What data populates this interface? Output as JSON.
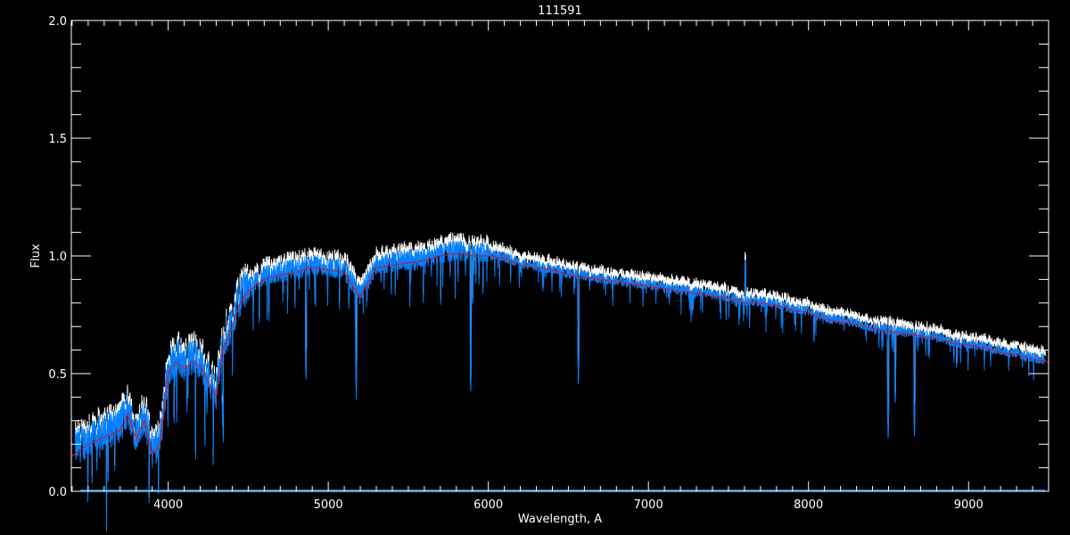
{
  "chart_data": {
    "type": "line",
    "title": "111591",
    "xlabel": "Wavelength, A",
    "ylabel": "Flux",
    "xlim": [
      3395,
      9500
    ],
    "ylim": [
      0,
      2.0
    ],
    "x_ticks": [
      4000,
      5000,
      6000,
      7000,
      8000,
      9000
    ],
    "x_tick_labels": [
      "4000",
      "5000",
      "6000",
      "7000",
      "8000",
      "9000"
    ],
    "y_ticks": [
      0,
      0.5,
      1.0,
      1.5,
      2.0
    ],
    "y_tick_labels": [
      "0.0",
      "0.5",
      "1.0",
      "1.5",
      "2.0"
    ],
    "grid": false,
    "colors": {
      "background": "#000000",
      "axes": "#ffffff",
      "observed": "#0080ff",
      "upper": "#ffffff",
      "model": "#ff0000"
    },
    "model": {
      "x": [
        3400,
        3500,
        3600,
        3700,
        3750,
        3800,
        3850,
        3900,
        3950,
        4000,
        4050,
        4100,
        4150,
        4200,
        4300,
        4340,
        4400,
        4450,
        4500,
        4600,
        4700,
        4800,
        4900,
        5000,
        5100,
        5200,
        5300,
        5400,
        5500,
        5600,
        5700,
        5800,
        5900,
        6000,
        6100,
        6200,
        6300,
        6400,
        6500,
        6600,
        6700,
        6800,
        6900,
        7000,
        7100,
        7200,
        7300,
        7400,
        7500,
        7600,
        7700,
        7800,
        7900,
        8000,
        8100,
        8200,
        8300,
        8400,
        8500,
        8600,
        8700,
        8800,
        8900,
        9000,
        9100,
        9200,
        9300,
        9400,
        9500
      ],
      "y": [
        0.15,
        0.2,
        0.23,
        0.26,
        0.33,
        0.22,
        0.3,
        0.15,
        0.2,
        0.5,
        0.55,
        0.52,
        0.55,
        0.53,
        0.4,
        0.6,
        0.7,
        0.8,
        0.85,
        0.9,
        0.92,
        0.93,
        0.95,
        0.94,
        0.93,
        0.82,
        0.95,
        0.96,
        0.97,
        0.98,
        1.0,
        1.01,
        1.0,
        1.0,
        0.99,
        0.96,
        0.95,
        0.94,
        0.92,
        0.91,
        0.9,
        0.89,
        0.88,
        0.87,
        0.86,
        0.85,
        0.84,
        0.83,
        0.82,
        0.8,
        0.8,
        0.79,
        0.77,
        0.76,
        0.73,
        0.72,
        0.71,
        0.69,
        0.68,
        0.67,
        0.66,
        0.65,
        0.63,
        0.62,
        0.61,
        0.59,
        0.58,
        0.56,
        0.55
      ]
    },
    "strong_lines": [
      {
        "x": 4340,
        "y": 0.25
      },
      {
        "x": 4861,
        "y": 0.45
      },
      {
        "x": 5175,
        "y": 0.39
      },
      {
        "x": 5890,
        "y": 0.4
      },
      {
        "x": 6563,
        "y": 0.43
      },
      {
        "x": 8498,
        "y": 0.2
      },
      {
        "x": 8542,
        "y": 0.35
      },
      {
        "x": 8662,
        "y": 0.21
      }
    ],
    "spikes": [
      {
        "x": 7605,
        "y": 0.98
      }
    ]
  }
}
